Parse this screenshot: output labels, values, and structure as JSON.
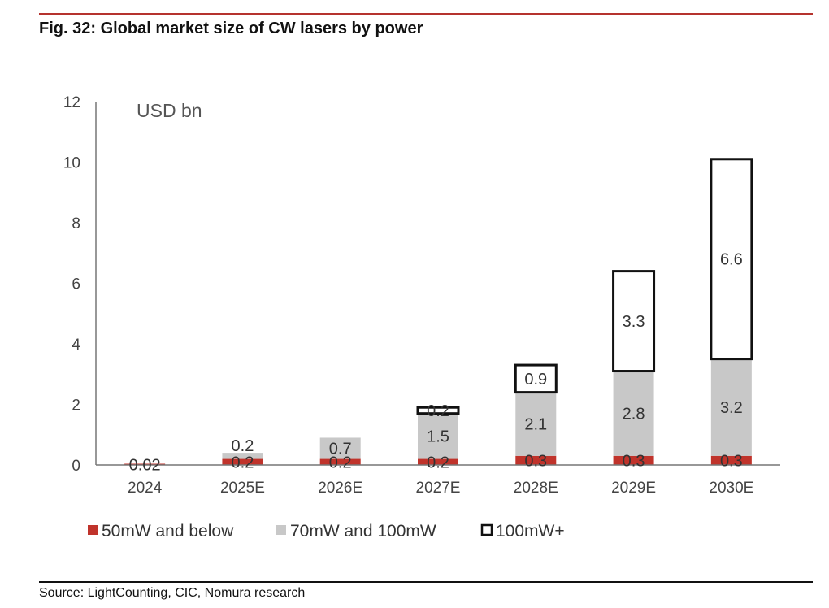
{
  "figure": {
    "title": "Fig. 32: Global market size of CW lasers by power",
    "source": "Source: LightCounting, CIC, Nomura research"
  },
  "chart_data": {
    "type": "bar",
    "stacked": true,
    "unit_label": "USD bn",
    "categories": [
      "2024",
      "2025E",
      "2026E",
      "2027E",
      "2028E",
      "2029E",
      "2030E"
    ],
    "ylim": [
      0,
      12
    ],
    "yticks": [
      0,
      2,
      4,
      6,
      8,
      10,
      12
    ],
    "grid": false,
    "legend_position": "bottom",
    "series": [
      {
        "name": "50mW and below",
        "values": [
          0.02,
          0.2,
          0.2,
          0.2,
          0.3,
          0.3,
          0.3
        ],
        "labels": [
          "0.02",
          "0.2",
          "0.2",
          "0.2",
          "0.3",
          "0.3",
          "0.3"
        ],
        "color": "#c0332b",
        "style": "filled"
      },
      {
        "name": "70mW and 100mW",
        "values": [
          0,
          0.2,
          0.7,
          1.5,
          2.1,
          2.8,
          3.2
        ],
        "labels": [
          "",
          "0.2",
          "0.7",
          "1.5",
          "2.1",
          "2.8",
          "3.2"
        ],
        "color": "#c8c8c8",
        "style": "filled"
      },
      {
        "name": "100mW+",
        "values": [
          0,
          0,
          0,
          0.2,
          0.9,
          3.3,
          6.6
        ],
        "labels": [
          "",
          "",
          "",
          "0.2",
          "0.9",
          "3.3",
          "6.6"
        ],
        "color": "#111111",
        "style": "outline"
      }
    ]
  }
}
